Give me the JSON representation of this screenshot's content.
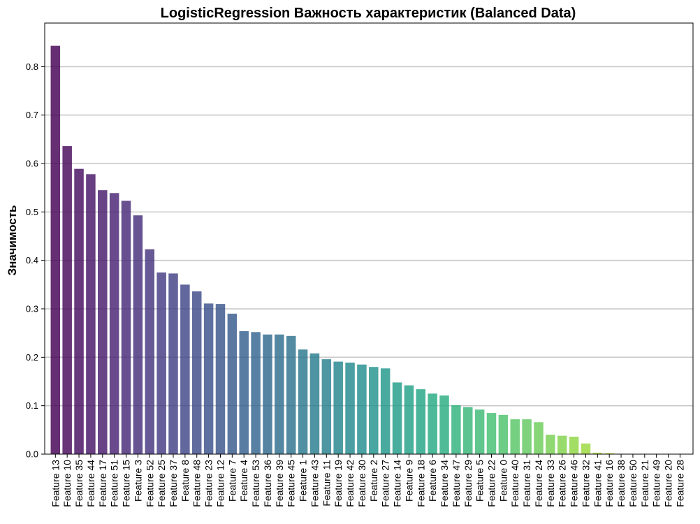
{
  "chart_data": {
    "type": "bar",
    "title": "LogisticRegression Важность характеристик (Balanced Data)",
    "xlabel": "",
    "ylabel": "Значимость",
    "ylim": [
      0,
      0.89
    ],
    "yticks": [
      0.0,
      0.1,
      0.2,
      0.3,
      0.4,
      0.5,
      0.6,
      0.7,
      0.8
    ],
    "ytick_labels": [
      "0.0",
      "0.1",
      "0.2",
      "0.3",
      "0.4",
      "0.5",
      "0.6",
      "0.7",
      "0.8"
    ],
    "grid": "horizontal",
    "colormap": "viridis",
    "categories": [
      "Feature 13",
      "Feature 10",
      "Feature 35",
      "Feature 44",
      "Feature 17",
      "Feature 51",
      "Feature 15",
      "Feature 3",
      "Feature 52",
      "Feature 25",
      "Feature 37",
      "Feature 8",
      "Feature 48",
      "Feature 23",
      "Feature 12",
      "Feature 7",
      "Feature 4",
      "Feature 53",
      "Feature 36",
      "Feature 39",
      "Feature 45",
      "Feature 1",
      "Feature 43",
      "Feature 11",
      "Feature 19",
      "Feature 42",
      "Feature 30",
      "Feature 2",
      "Feature 27",
      "Feature 14",
      "Feature 9",
      "Feature 18",
      "Feature 6",
      "Feature 34",
      "Feature 47",
      "Feature 29",
      "Feature 5",
      "Feature 22",
      "Feature 0",
      "Feature 40",
      "Feature 31",
      "Feature 24",
      "Feature 33",
      "Feature 26",
      "Feature 46",
      "Feature 32",
      "Feature 41",
      "Feature 16",
      "Feature 38",
      "Feature 50",
      "Feature 21",
      "Feature 49",
      "Feature 20",
      "Feature 28"
    ],
    "values": [
      0.843,
      0.636,
      0.589,
      0.578,
      0.545,
      0.539,
      0.523,
      0.493,
      0.423,
      0.375,
      0.373,
      0.35,
      0.336,
      0.311,
      0.31,
      0.29,
      0.254,
      0.252,
      0.247,
      0.247,
      0.244,
      0.216,
      0.208,
      0.196,
      0.191,
      0.189,
      0.185,
      0.18,
      0.177,
      0.148,
      0.142,
      0.134,
      0.125,
      0.121,
      0.101,
      0.097,
      0.092,
      0.085,
      0.081,
      0.072,
      0.072,
      0.066,
      0.04,
      0.038,
      0.036,
      0.022,
      0.003,
      0.002,
      0.0008,
      0.0005,
      0.0004,
      0.0003,
      0.0002,
      0.0001
    ]
  }
}
